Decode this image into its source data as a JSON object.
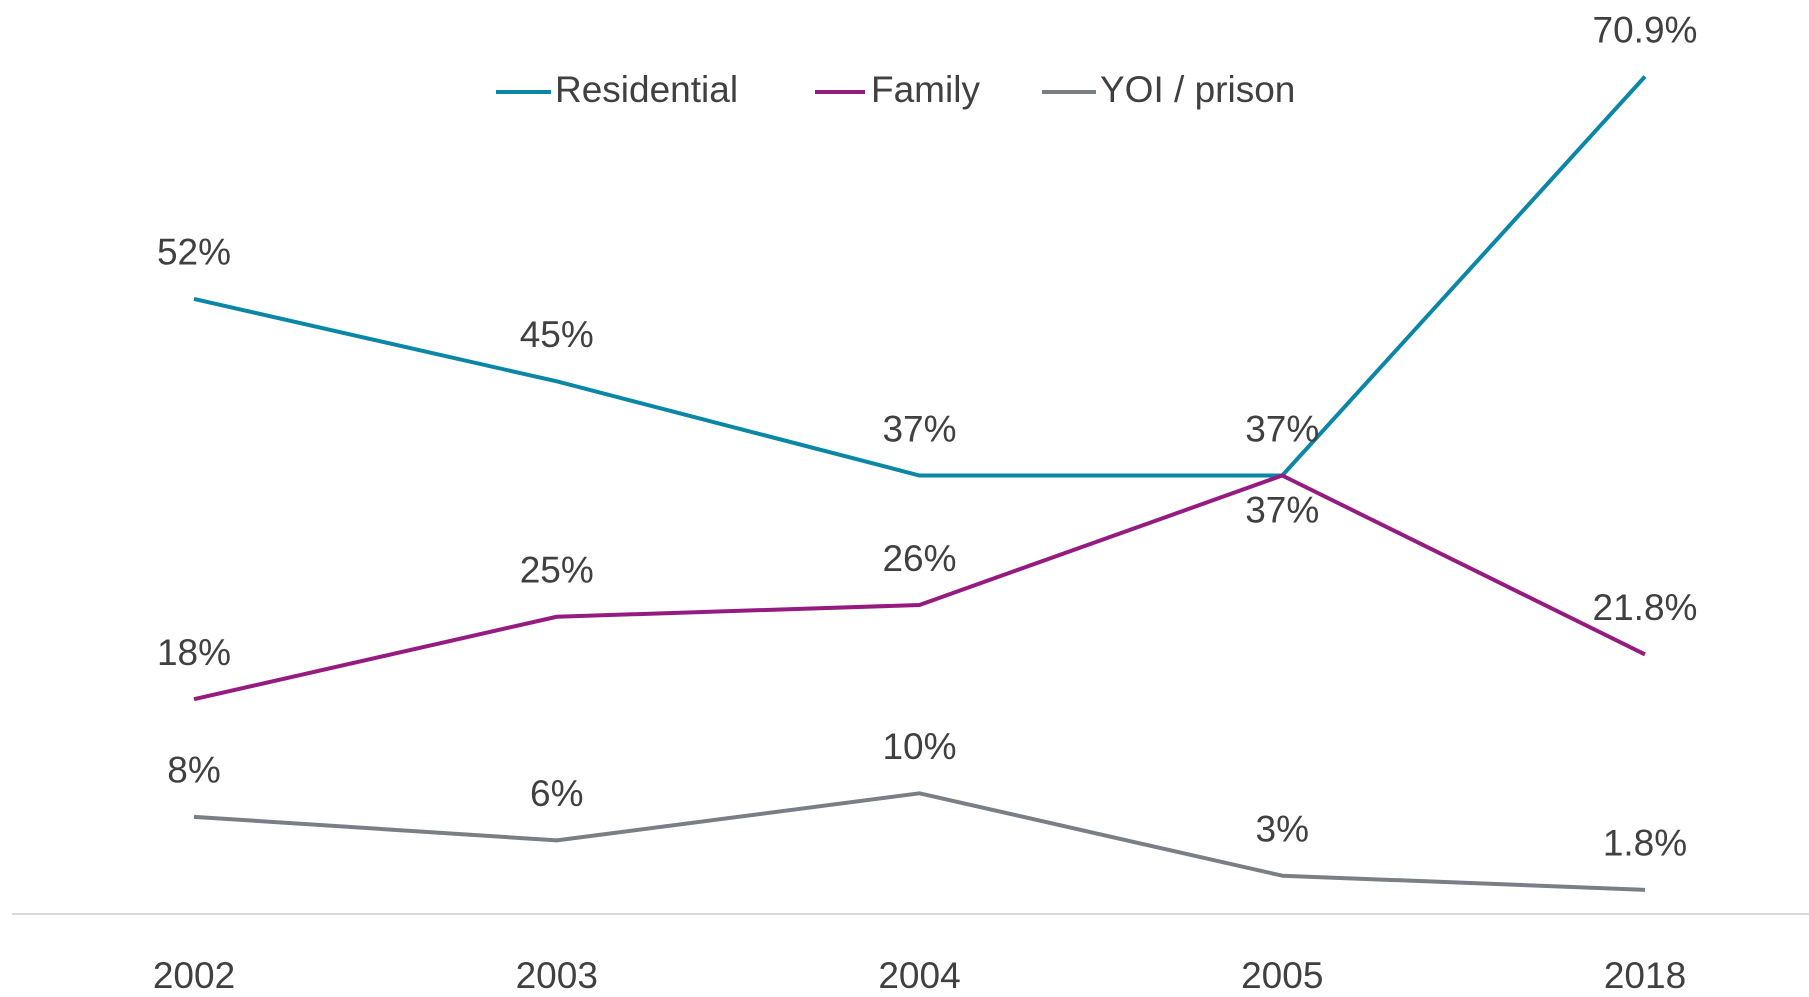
{
  "chart_data": {
    "type": "line",
    "categories": [
      "2002",
      "2003",
      "2004",
      "2005",
      "2018"
    ],
    "series": [
      {
        "name": "Residential",
        "color": "#0a87a6",
        "values": [
          52,
          45,
          37,
          37,
          70.9
        ],
        "value_labels": [
          "52%",
          "45%",
          "37%",
          "37%",
          "70.9%"
        ]
      },
      {
        "name": "Family",
        "color": "#951b81",
        "values": [
          18,
          25,
          26,
          37,
          21.8
        ],
        "value_labels": [
          "18%",
          "25%",
          "26%",
          "37%",
          "21.8%"
        ]
      },
      {
        "name": "YOI / prison",
        "color": "#787f86",
        "values": [
          8,
          6,
          10,
          3,
          1.8
        ],
        "value_labels": [
          "8%",
          "6%",
          "10%",
          "3%",
          "1.8%"
        ]
      }
    ],
    "legend": "top"
  }
}
